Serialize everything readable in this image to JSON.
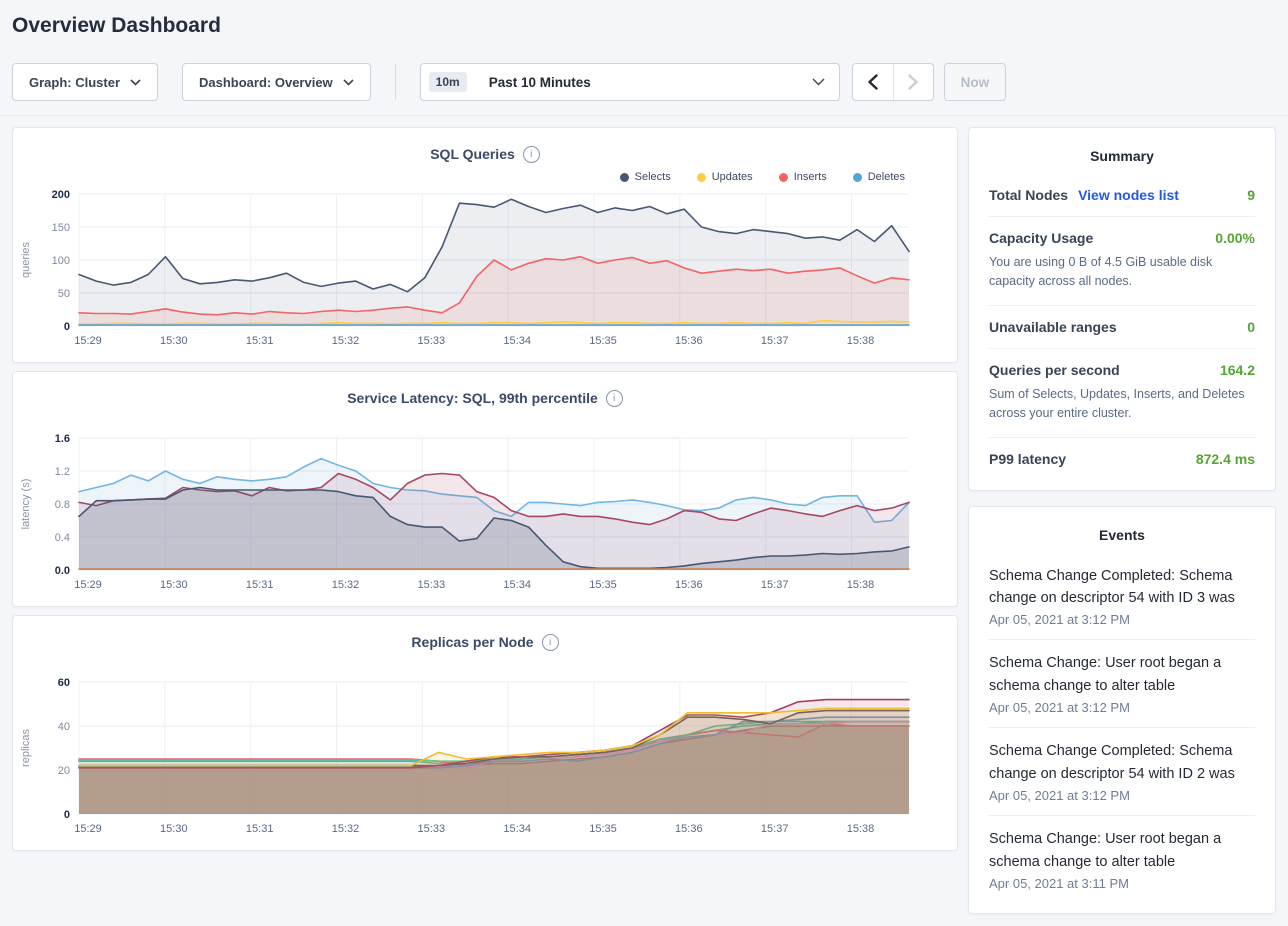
{
  "page_title": "Overview Dashboard",
  "toolbar": {
    "graph_dropdown": "Graph: Cluster",
    "dashboard_dropdown": "Dashboard: Overview",
    "time_badge": "10m",
    "time_label": "Past 10 Minutes",
    "now_label": "Now"
  },
  "summary": {
    "title": "Summary",
    "items": [
      {
        "label": "Total Nodes",
        "link": "View nodes list",
        "value": "9"
      },
      {
        "label": "Capacity Usage",
        "value": "0.00%",
        "description": "You are using 0 B of 4.5 GiB usable disk capacity across all nodes."
      },
      {
        "label": "Unavailable ranges",
        "value": "0"
      },
      {
        "label": "Queries per second",
        "value": "164.2",
        "description": "Sum of Selects, Updates, Inserts, and Deletes across your entire cluster."
      },
      {
        "label": "P99 latency",
        "value": "872.4 ms"
      }
    ],
    "value_color": "#55a532",
    "link_color": "#2458e6"
  },
  "events": {
    "title": "Events",
    "items": [
      {
        "text": "Schema Change Completed: Schema change on descriptor 54 with ID 3 was",
        "timestamp": "Apr 05, 2021 at 3:12 PM"
      },
      {
        "text": "Schema Change: User root began a schema change to alter table",
        "timestamp": "Apr 05, 2021 at 3:12 PM"
      },
      {
        "text": "Schema Change Completed: Schema change on descriptor 54 with ID 2 was",
        "timestamp": "Apr 05, 2021 at 3:12 PM"
      },
      {
        "text": "Schema Change: User root began a schema change to alter table",
        "timestamp": "Apr 05, 2021 at 3:11 PM"
      }
    ]
  },
  "chart_data": [
    {
      "type": "area",
      "title": "SQL Queries",
      "ylabel": "queries",
      "ylim": [
        0,
        200
      ],
      "yticks": [
        0,
        50,
        100,
        150,
        200
      ],
      "ytick_labels": [
        "0",
        "50",
        "100",
        "150",
        "200"
      ],
      "xticklabels": [
        "15:29",
        "15:30",
        "15:31",
        "15:32",
        "15:33",
        "15:34",
        "15:35",
        "15:36",
        "15:37",
        "15:38"
      ],
      "x_max": 9.67,
      "legend": [
        {
          "name": "Selects",
          "color": "#475872"
        },
        {
          "name": "Updates",
          "color": "#ffcd40"
        },
        {
          "name": "Inserts",
          "color": "#f06565"
        },
        {
          "name": "Deletes",
          "color": "#55a3d6"
        }
      ],
      "series": [
        {
          "name": "Selects",
          "color": "#475872",
          "fill_opacity": 0.1,
          "values": [
            78,
            68,
            62,
            66,
            78,
            105,
            72,
            64,
            66,
            70,
            68,
            73,
            80,
            66,
            60,
            65,
            68,
            56,
            63,
            52,
            73,
            120,
            186,
            184,
            180,
            192,
            181,
            172,
            178,
            183,
            172,
            179,
            175,
            181,
            170,
            177,
            150,
            143,
            140,
            146,
            143,
            140,
            133,
            135,
            130,
            146,
            128,
            152,
            113
          ]
        },
        {
          "name": "Inserts",
          "color": "#f06565",
          "fill_opacity": 0.12,
          "values": [
            20,
            19,
            19,
            18,
            22,
            26,
            21,
            18,
            17,
            20,
            18,
            22,
            20,
            19,
            22,
            24,
            22,
            24,
            27,
            29,
            24,
            20,
            35,
            75,
            100,
            85,
            95,
            102,
            100,
            105,
            95,
            100,
            104,
            95,
            99,
            88,
            80,
            83,
            86,
            84,
            86,
            80,
            83,
            85,
            88,
            76,
            65,
            73,
            70
          ]
        },
        {
          "name": "Updates",
          "color": "#ffcd40",
          "fill_opacity": 0.18,
          "values": [
            3,
            3,
            4,
            4,
            3,
            3,
            4,
            4,
            3,
            3,
            4,
            4,
            3,
            3,
            4,
            5,
            4,
            4,
            3,
            4,
            4,
            5,
            4,
            4,
            5,
            5,
            4,
            5,
            6,
            5,
            4,
            5,
            5,
            4,
            4,
            5,
            4,
            4,
            5,
            4,
            4,
            5,
            4,
            8,
            7,
            6,
            6,
            7,
            6
          ]
        },
        {
          "name": "Deletes",
          "color": "#55a3d6",
          "fill_opacity": 0.25,
          "values": 1.5
        }
      ]
    },
    {
      "type": "area",
      "title": "Service Latency: SQL, 99th percentile",
      "ylabel": "latency (s)",
      "ylim": [
        0,
        1.6
      ],
      "yticks": [
        0,
        0.4,
        0.8,
        1.2,
        1.6
      ],
      "ytick_labels": [
        "0.0",
        "0.4",
        "0.8",
        "1.2",
        "1.6"
      ],
      "xticklabels": [
        "15:29",
        "15:30",
        "15:31",
        "15:32",
        "15:33",
        "15:34",
        "15:35",
        "15:36",
        "15:37",
        "15:38"
      ],
      "x_max": 9.67,
      "legend": [],
      "series": [
        {
          "name": "latency-blue",
          "color": "#74b5e2",
          "fill_opacity": 0.13,
          "values": [
            0.95,
            1.0,
            1.05,
            1.15,
            1.08,
            1.2,
            1.1,
            1.05,
            1.13,
            1.1,
            1.08,
            1.1,
            1.13,
            1.25,
            1.35,
            1.27,
            1.2,
            1.05,
            1.0,
            0.97,
            0.96,
            0.92,
            0.9,
            0.88,
            0.72,
            0.65,
            0.82,
            0.82,
            0.8,
            0.78,
            0.82,
            0.83,
            0.85,
            0.82,
            0.78,
            0.73,
            0.72,
            0.75,
            0.85,
            0.88,
            0.85,
            0.8,
            0.78,
            0.88,
            0.9,
            0.9,
            0.58,
            0.6,
            0.82
          ]
        },
        {
          "name": "latency-maroon",
          "color": "#a64862",
          "fill_opacity": 0.13,
          "values": [
            0.82,
            0.78,
            0.84,
            0.85,
            0.86,
            0.87,
            1.0,
            0.97,
            0.95,
            0.96,
            0.9,
            1.0,
            0.96,
            0.97,
            1.0,
            1.17,
            1.1,
            1.0,
            0.85,
            1.05,
            1.15,
            1.17,
            1.15,
            0.95,
            0.88,
            0.72,
            0.65,
            0.65,
            0.68,
            0.65,
            0.65,
            0.62,
            0.58,
            0.55,
            0.62,
            0.72,
            0.7,
            0.62,
            0.6,
            0.68,
            0.75,
            0.72,
            0.68,
            0.65,
            0.72,
            0.78,
            0.72,
            0.75,
            0.82
          ]
        },
        {
          "name": "latency-navy",
          "color": "#475872",
          "fill_opacity": 0.2,
          "values": [
            0.65,
            0.84,
            0.84,
            0.85,
            0.86,
            0.86,
            0.97,
            1.0,
            0.97,
            0.97,
            0.97,
            0.97,
            0.97,
            0.97,
            0.97,
            0.95,
            0.9,
            0.88,
            0.65,
            0.55,
            0.52,
            0.52,
            0.35,
            0.38,
            0.63,
            0.6,
            0.52,
            0.3,
            0.1,
            0.04,
            0.02,
            0.02,
            0.02,
            0.02,
            0.03,
            0.05,
            0.08,
            0.1,
            0.12,
            0.15,
            0.17,
            0.17,
            0.18,
            0.2,
            0.19,
            0.2,
            0.22,
            0.23,
            0.28
          ]
        },
        {
          "name": "latency-orange",
          "color": "#c9804e",
          "fill_opacity": 0,
          "values": 0.012
        }
      ]
    },
    {
      "type": "area",
      "title": "Replicas per Node",
      "ylabel": "replicas",
      "ylim": [
        0,
        60
      ],
      "yticks": [
        0,
        20,
        40,
        60
      ],
      "ytick_labels": [
        "0",
        "20",
        "40",
        "60"
      ],
      "xticklabels": [
        "15:29",
        "15:30",
        "15:31",
        "15:32",
        "15:33",
        "15:34",
        "15:35",
        "15:36",
        "15:37",
        "15:38"
      ],
      "x_max": 9.67,
      "legend": [],
      "series": [
        {
          "name": "node-brown",
          "color": "#a5705d",
          "fill_opacity": 0.42,
          "values": [
            21,
            21,
            21,
            21,
            21,
            21,
            21,
            21,
            21,
            21,
            21,
            21,
            21,
            21,
            22,
            23,
            23,
            24,
            25,
            26,
            28,
            32,
            34,
            36,
            38,
            40,
            40,
            40,
            40,
            40,
            40
          ]
        },
        {
          "name": "node-green",
          "color": "#5eb783",
          "fill_opacity": 0.12,
          "values": [
            24,
            24,
            24,
            24,
            24,
            24,
            24,
            24,
            24,
            24,
            24,
            24,
            24,
            23,
            24,
            25,
            25,
            26,
            27,
            28,
            30,
            33,
            36,
            38,
            40,
            41,
            41,
            42,
            42,
            42,
            42
          ]
        },
        {
          "name": "node-red",
          "color": "#e26a6a",
          "fill_opacity": 0.12,
          "values": [
            25,
            25,
            25,
            25,
            25,
            25,
            25,
            25,
            25,
            25,
            25,
            25,
            25,
            24,
            22,
            25,
            26,
            26,
            27,
            28,
            30,
            34,
            36,
            38,
            37,
            36,
            35,
            41,
            40,
            40,
            40
          ]
        },
        {
          "name": "node-teal",
          "color": "#53c1a5",
          "fill_opacity": 0.1,
          "values": [
            24.5,
            24.5,
            24.5,
            24.5,
            24.5,
            24.5,
            24.5,
            24.5,
            24.5,
            24.5,
            24.5,
            24.5,
            24.5,
            24,
            24,
            25,
            25,
            26,
            27,
            28,
            30,
            34,
            36,
            40,
            41,
            42,
            42,
            42,
            42,
            42,
            42
          ]
        },
        {
          "name": "node-pink",
          "color": "#e08fd0",
          "fill_opacity": 0.1,
          "values": [
            21.5,
            21.5,
            21.5,
            21.5,
            21.5,
            21.5,
            21.5,
            21.5,
            21.5,
            21.5,
            21.5,
            21.5,
            21.5,
            22,
            21,
            24,
            24,
            25,
            26,
            27,
            29,
            33,
            35,
            36,
            37,
            41,
            41,
            41,
            42,
            42,
            42
          ]
        },
        {
          "name": "node-blue",
          "color": "#7198cb",
          "fill_opacity": 0.1,
          "values": [
            21.5,
            21.5,
            21.5,
            21.5,
            21.5,
            21.5,
            21.5,
            21.5,
            21.5,
            21.5,
            21.5,
            21.5,
            21.5,
            21,
            22,
            24,
            24,
            25,
            24,
            26,
            28,
            32,
            35,
            36,
            42,
            42,
            43,
            44,
            44,
            44,
            44
          ]
        },
        {
          "name": "node-dark",
          "color": "#55585e",
          "fill_opacity": 0.12,
          "values": [
            22,
            22,
            22,
            22,
            22,
            22,
            22,
            22,
            22,
            22,
            22,
            22,
            22,
            22,
            23,
            25,
            26,
            26,
            27,
            28,
            30,
            36,
            44,
            44,
            43,
            41,
            46,
            47,
            47,
            47,
            47
          ]
        },
        {
          "name": "node-magenta",
          "color": "#a33e69",
          "fill_opacity": 0.12,
          "values": [
            21,
            21,
            21,
            21,
            21,
            21,
            21,
            21,
            21,
            21,
            21,
            21,
            21,
            22,
            24,
            26,
            26,
            27,
            28,
            29,
            31,
            38,
            45,
            45,
            44,
            46,
            51,
            52,
            52,
            52,
            52
          ]
        },
        {
          "name": "node-yellow",
          "color": "#efbd33",
          "fill_opacity": 0.15,
          "values": [
            22,
            22,
            22,
            22,
            22,
            22,
            22,
            22,
            22,
            22,
            22,
            22,
            22,
            28,
            25,
            26,
            27,
            28,
            28,
            29,
            31,
            36,
            46,
            46,
            46,
            46,
            47,
            48,
            48,
            48,
            48
          ]
        }
      ]
    }
  ]
}
